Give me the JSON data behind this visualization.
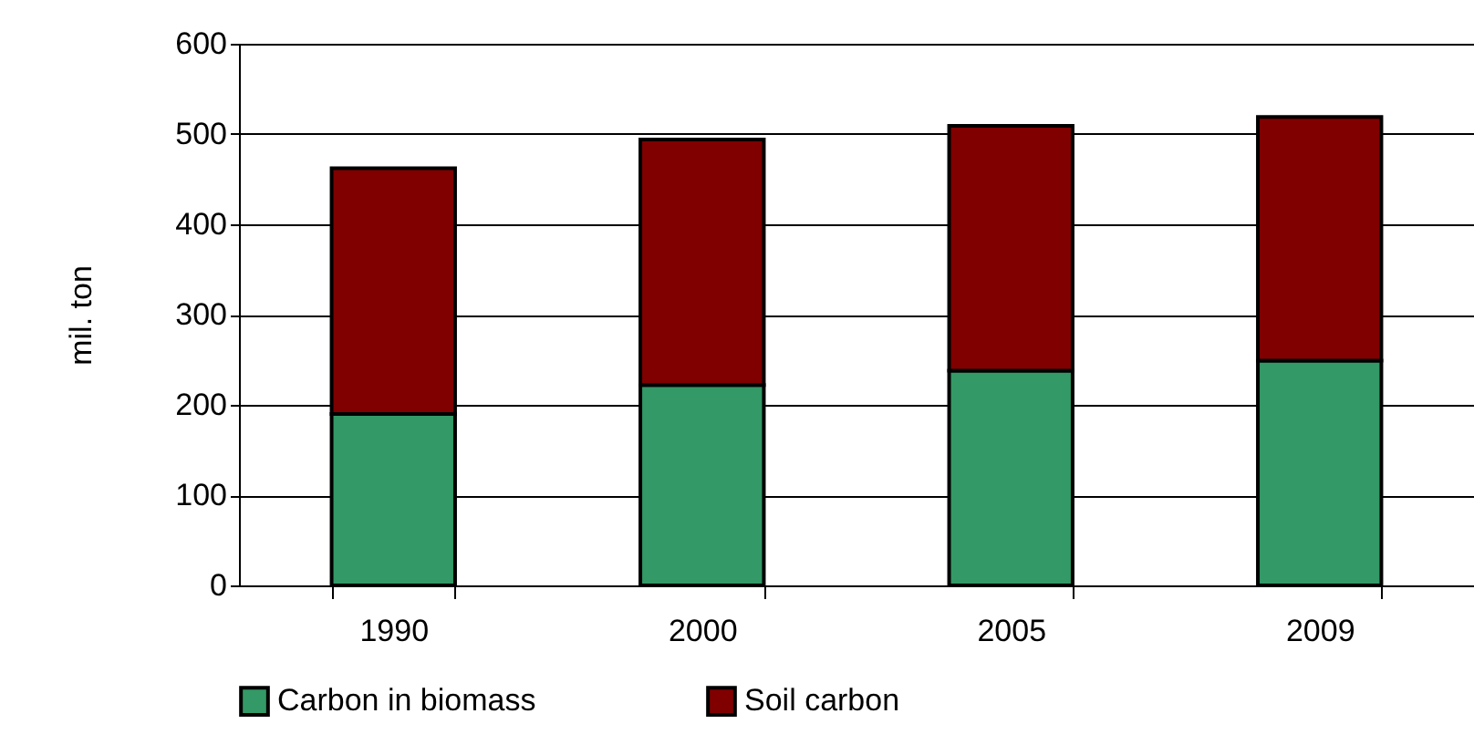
{
  "chart_data": {
    "type": "bar",
    "ylabel": "mil. ton",
    "categories": [
      "1990",
      "2000",
      "2005",
      "2009"
    ],
    "stacked": true,
    "ylim": [
      0,
      600
    ],
    "yticks": [
      0,
      100,
      200,
      300,
      400,
      500,
      600
    ],
    "grid": "y",
    "legend": "bottom",
    "series": [
      {
        "name": "Carbon in biomass",
        "color": "#339966",
        "values": [
          190,
          222,
          238,
          249
        ]
      },
      {
        "name": "Soil carbon",
        "color": "#800000",
        "values": [
          272,
          272,
          271,
          270
        ]
      }
    ]
  }
}
